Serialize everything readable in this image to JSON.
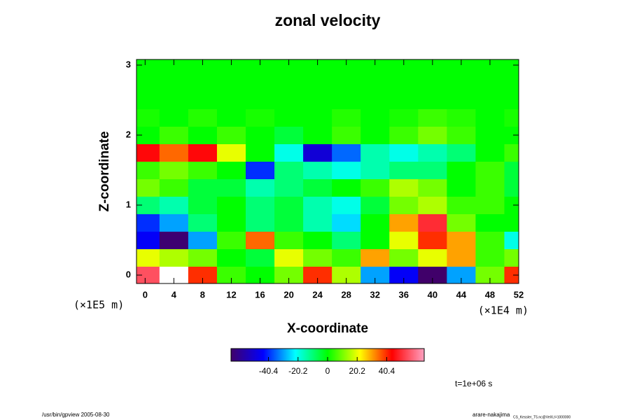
{
  "chart_data": {
    "type": "heatmap",
    "title": "zonal velocity",
    "x_label": "X-coordinate",
    "y_label": "Z-coordinate",
    "x_unit": "(×1E4 m)",
    "y_unit": "(×1E5 m)",
    "x": [
      0,
      4,
      8,
      12,
      16,
      20,
      24,
      28,
      32,
      36,
      40,
      44,
      48,
      52
    ],
    "y": [
      0,
      0.25,
      0.5,
      0.75,
      1,
      1.25,
      1.5,
      1.75,
      2,
      2.25,
      2.5,
      2.75,
      3
    ],
    "z": [
      [
        55,
        70,
        40,
        5,
        0,
        10,
        40,
        15,
        -30,
        -45,
        -70,
        -30,
        10,
        40
      ],
      [
        20,
        15,
        10,
        0,
        -5,
        20,
        10,
        5,
        30,
        10,
        20,
        30,
        5,
        10
      ],
      [
        -45,
        -65,
        -30,
        5,
        35,
        5,
        0,
        -10,
        0,
        20,
        40,
        30,
        5,
        -20
      ],
      [
        -40,
        -30,
        -10,
        0,
        -10,
        -5,
        -15,
        -25,
        0,
        30,
        50,
        10,
        0,
        0
      ],
      [
        -10,
        -15,
        -5,
        0,
        -10,
        -5,
        -15,
        -20,
        -5,
        10,
        15,
        5,
        5,
        0
      ],
      [
        10,
        5,
        -5,
        -5,
        -15,
        -10,
        -5,
        0,
        5,
        15,
        10,
        0,
        5,
        -5
      ],
      [
        5,
        10,
        5,
        0,
        -40,
        -10,
        -15,
        -20,
        -15,
        -10,
        -10,
        0,
        5,
        -5
      ],
      [
        45,
        35,
        45,
        20,
        0,
        -20,
        -50,
        -35,
        -15,
        -20,
        -15,
        -10,
        0,
        5
      ],
      [
        0,
        5,
        0,
        5,
        0,
        -5,
        0,
        5,
        0,
        5,
        10,
        5,
        0,
        0
      ],
      [
        2,
        0,
        3,
        0,
        2,
        0,
        0,
        3,
        0,
        2,
        5,
        3,
        0,
        2
      ],
      [
        0,
        0,
        0,
        0,
        0,
        0,
        0,
        0,
        0,
        0,
        0,
        0,
        0,
        0
      ],
      [
        0,
        0,
        0,
        0,
        0,
        0,
        0,
        0,
        0,
        0,
        0,
        0,
        0,
        0
      ],
      [
        0,
        0,
        0,
        0,
        0,
        0,
        0,
        0,
        0,
        0,
        0,
        0,
        0,
        0
      ]
    ],
    "xlim": [
      -1.2,
      52
    ],
    "ylim": [
      -0.12,
      3.08
    ],
    "xticks": [
      0,
      4,
      8,
      12,
      16,
      20,
      24,
      28,
      32,
      36,
      40,
      44,
      48,
      52
    ],
    "yticks": [
      0,
      1,
      2,
      3
    ],
    "clim": [
      -66,
      66
    ],
    "colorbar_ticks": [
      -40.4,
      -20.2,
      0,
      20.2,
      40.4
    ],
    "colormap": [
      "#40006a",
      "#0000ff",
      "#00ffff",
      "#00ff00",
      "#ffff00",
      "#ff0000",
      "#ffa0c0"
    ],
    "over_color": "#ffffff",
    "time_label": "t=1e+06 s",
    "footer_left": "/usr/bin/gpview 2005-08-30",
    "footer_right": "arare-nakajima",
    "footer_right_small": "CS_Kessler_T5.nc@VelX,t=1000000"
  }
}
